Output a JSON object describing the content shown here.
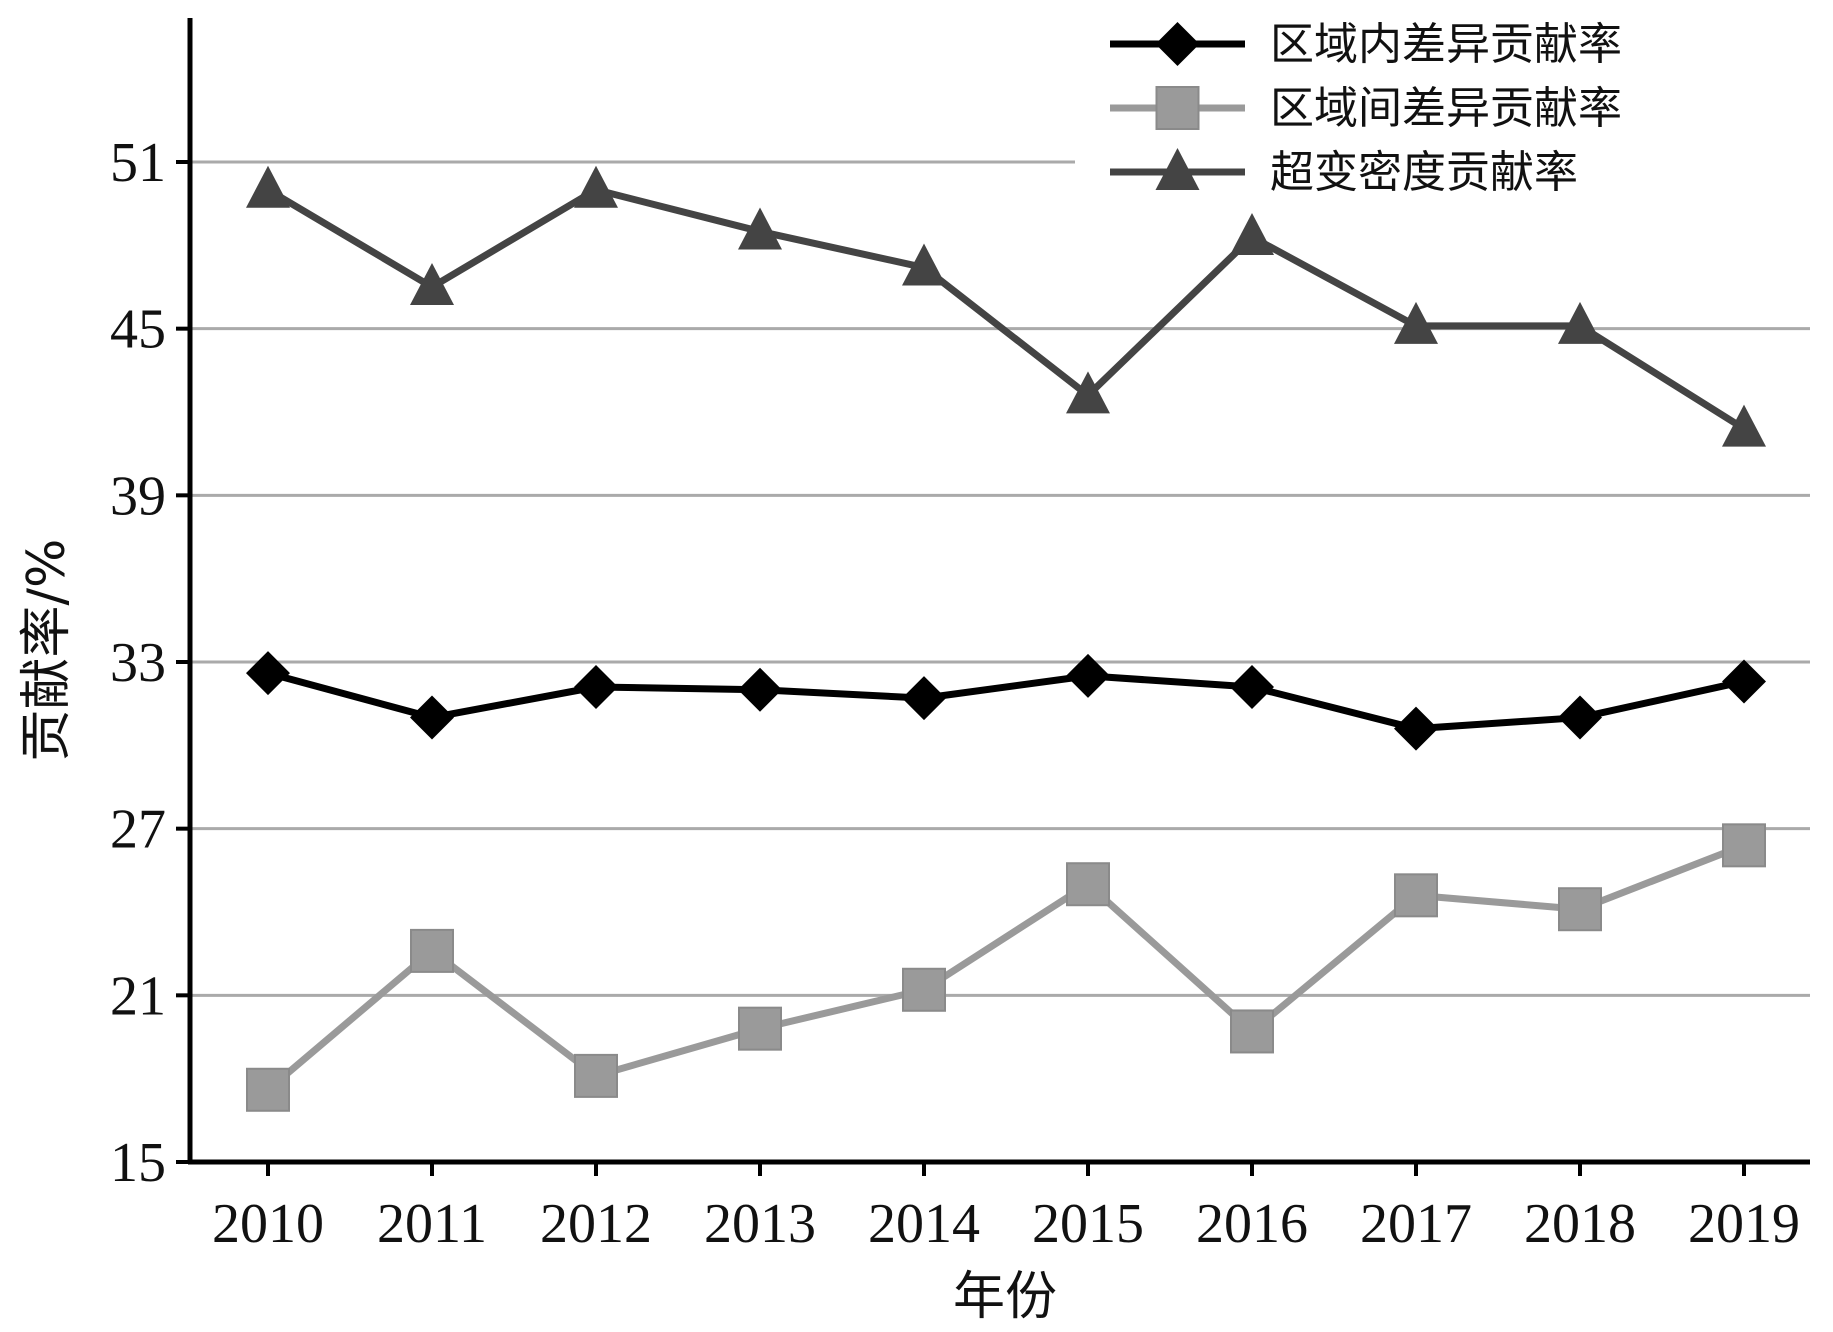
{
  "chart_data": {
    "type": "line",
    "xlabel": "年份",
    "ylabel": "贡献率/%",
    "categories": [
      "2010",
      "2011",
      "2012",
      "2013",
      "2014",
      "2015",
      "2016",
      "2017",
      "2018",
      "2019"
    ],
    "yticks": [
      "15",
      "21",
      "27",
      "33",
      "39",
      "45",
      "51"
    ],
    "ylim": [
      15,
      55
    ],
    "grid": "horizontal",
    "legend_position": "top-right",
    "series": [
      {
        "name": "区域内差异贡献率",
        "marker": "diamond",
        "color": "#000000",
        "values": [
          32.6,
          31.0,
          32.1,
          32.0,
          31.7,
          32.5,
          32.1,
          30.6,
          31.0,
          32.3
        ]
      },
      {
        "name": "区域间差异贡献率",
        "marker": "square",
        "color": "#9a9a9a",
        "values": [
          17.6,
          22.6,
          18.1,
          19.8,
          21.2,
          25.0,
          19.7,
          24.6,
          24.1,
          26.4
        ]
      },
      {
        "name": "超变密度贡献率",
        "marker": "triangle",
        "color": "#444444",
        "values": [
          50.0,
          46.5,
          50.0,
          48.5,
          47.2,
          42.6,
          48.3,
          45.1,
          45.1,
          41.4
        ]
      }
    ]
  }
}
